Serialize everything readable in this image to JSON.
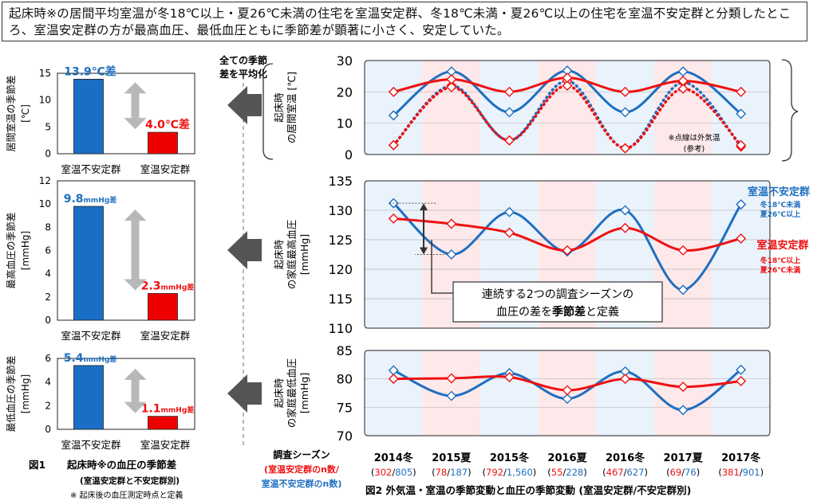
{
  "summary": "起床時※の居間平均室温が冬18℃以上・夏26℃未満の住宅を室温安定群、冬18℃未満・夏26℃以上の住宅を室温不安定群と分類したところ、室温安定群の方が最高血圧、最低血圧ともに季節差が顕著に小さく、安定していた。",
  "colors": {
    "unstable": "#1f6fbf",
    "stable": "#ee1111",
    "winter_band": "#eaf3fc",
    "summer_band": "#fde8ea",
    "arrow": "#555555"
  },
  "arrow_label": "全ての季節差を平均化",
  "fig1": {
    "caption_label": "図1",
    "caption_title": "起床時※の血圧の季節差",
    "caption_sub": "(室温安定群と不安定群別)",
    "footnote": "※ 起床後の血圧測定時点と定義",
    "charts": [
      {
        "ylabel": "居間室温の季節差",
        "unit": "[℃]",
        "yticks": [
          "0",
          "5",
          "10",
          "15"
        ],
        "categories": [
          "室温不安定群",
          "室温安定群"
        ],
        "values": [
          13.9,
          4.0
        ],
        "labels": [
          "13.9℃差",
          "4.0℃差"
        ],
        "ylim": [
          0,
          15
        ]
      },
      {
        "ylabel": "最高血圧の季節差",
        "unit": "[mmHg]",
        "yticks": [
          "0",
          "2",
          "4",
          "6",
          "8",
          "10",
          "12"
        ],
        "categories": [
          "室温不安定群",
          "室温安定群"
        ],
        "values": [
          9.8,
          2.3
        ],
        "labels": [
          "9.8",
          "2.3"
        ],
        "label_unit": "mmHg差",
        "ylim": [
          0,
          12
        ]
      },
      {
        "ylabel": "最低血圧の季節差",
        "unit": "[mmHg]",
        "yticks": [
          "0",
          "2",
          "4",
          "6"
        ],
        "categories": [
          "室温不安定群",
          "室温安定群"
        ],
        "values": [
          5.4,
          1.1
        ],
        "labels": [
          "5.4",
          "1.1"
        ],
        "label_unit": "mmHg差",
        "ylim": [
          0,
          6
        ]
      }
    ]
  },
  "fig2": {
    "caption": "図2 外気温・室温の季節変動と血圧の季節変動 (室温安定群/不安定群別)",
    "season_header": "調査シーズン",
    "season_legend_stable": "(室温安定群のn数/",
    "season_legend_unstable": "室温不安定群のn数)",
    "seasons": [
      "2014冬",
      "2015夏",
      "2015冬",
      "2016夏",
      "2016冬",
      "2017夏",
      "2017冬"
    ],
    "n_stable": [
      "302",
      "78",
      "792",
      "55",
      "467",
      "69",
      "381"
    ],
    "n_unstable": [
      "805",
      "187",
      "1,560",
      "228",
      "627",
      "76",
      "901"
    ],
    "note_outdoor": "※点線は外気温",
    "note_ref": "(参考)",
    "annotation_line1": "連続する2つの調査シーズンの",
    "annotation_line2a": "血圧の差を",
    "annotation_line2b": "季節差",
    "annotation_line2c": "と定義",
    "legend_unstable_title": "室温不安定群",
    "legend_unstable_l1": "冬18℃未満",
    "legend_unstable_l2": "夏26℃以上",
    "legend_stable_title": "室温安定群",
    "legend_stable_l1": "冬18℃以上",
    "legend_stable_l2": "夏26℃未満"
  },
  "chart_data": [
    {
      "type": "bar",
      "title": "",
      "ylabel": "居間室温の季節差 [℃]",
      "categories": [
        "室温不安定群",
        "室温安定群"
      ],
      "values": [
        13.9,
        4.0
      ],
      "ylim": [
        0,
        15
      ]
    },
    {
      "type": "bar",
      "title": "",
      "ylabel": "最高血圧の季節差 [mmHg]",
      "categories": [
        "室温不安定群",
        "室温安定群"
      ],
      "values": [
        9.8,
        2.3
      ],
      "ylim": [
        0,
        12
      ]
    },
    {
      "type": "bar",
      "title": "",
      "ylabel": "最低血圧の季節差 [mmHg]",
      "categories": [
        "室温不安定群",
        "室温安定群"
      ],
      "values": [
        5.4,
        1.1
      ],
      "ylim": [
        0,
        6
      ]
    },
    {
      "type": "line",
      "ylabel": "起床時の居間室温 [℃]",
      "yticks": [
        "0",
        "10",
        "20",
        "30"
      ],
      "ylim": [
        0,
        30
      ],
      "categories": [
        "2014冬",
        "2015夏",
        "2015冬",
        "2016夏",
        "2016冬",
        "2017夏",
        "2017冬"
      ],
      "series": [
        {
          "name": "室温不安定群",
          "values": [
            12.5,
            26.5,
            13.5,
            26.8,
            13.5,
            26.5,
            13.0
          ]
        },
        {
          "name": "室温安定群",
          "values": [
            20.0,
            24.0,
            20.0,
            24.5,
            20.0,
            23.5,
            20.0
          ]
        },
        {
          "name": "",
          "values": [
            3.0,
            22.0,
            4.5,
            23.5,
            2.0,
            23.0,
            2.5
          ]
        },
        {
          "name": "",
          "values": [
            3.0,
            21.5,
            4.5,
            22.0,
            2.0,
            21.0,
            3.0
          ]
        }
      ]
    },
    {
      "type": "line",
      "ylabel": "起床時の家庭最高血圧 [mmHg]",
      "yticks": [
        "110",
        "115",
        "120",
        "125",
        "130",
        "135"
      ],
      "ylim": [
        110,
        135
      ],
      "categories": [
        "2014冬",
        "2015夏",
        "2015冬",
        "2016夏",
        "2016冬",
        "2017夏",
        "2017冬"
      ],
      "series": [
        {
          "name": "室温不安定群",
          "values": [
            131.2,
            122.5,
            129.7,
            123.0,
            130.0,
            116.5,
            131.0
          ]
        },
        {
          "name": "室温安定群",
          "values": [
            128.6,
            127.7,
            126.2,
            123.2,
            127.0,
            123.2,
            125.2
          ]
        }
      ]
    },
    {
      "type": "line",
      "ylabel": "起床時の家庭最低血圧 [mmHg]",
      "yticks": [
        "70",
        "75",
        "80",
        "85"
      ],
      "ylim": [
        70,
        85
      ],
      "categories": [
        "2014冬",
        "2015夏",
        "2015冬",
        "2016夏",
        "2016冬",
        "2017夏",
        "2017冬"
      ],
      "series": [
        {
          "name": "室温不安定群",
          "values": [
            81.5,
            77.0,
            81.0,
            76.5,
            81.3,
            74.5,
            81.6
          ]
        },
        {
          "name": "室温安定群",
          "values": [
            80.0,
            80.1,
            80.3,
            78.0,
            80.0,
            78.6,
            79.6
          ]
        }
      ]
    }
  ]
}
